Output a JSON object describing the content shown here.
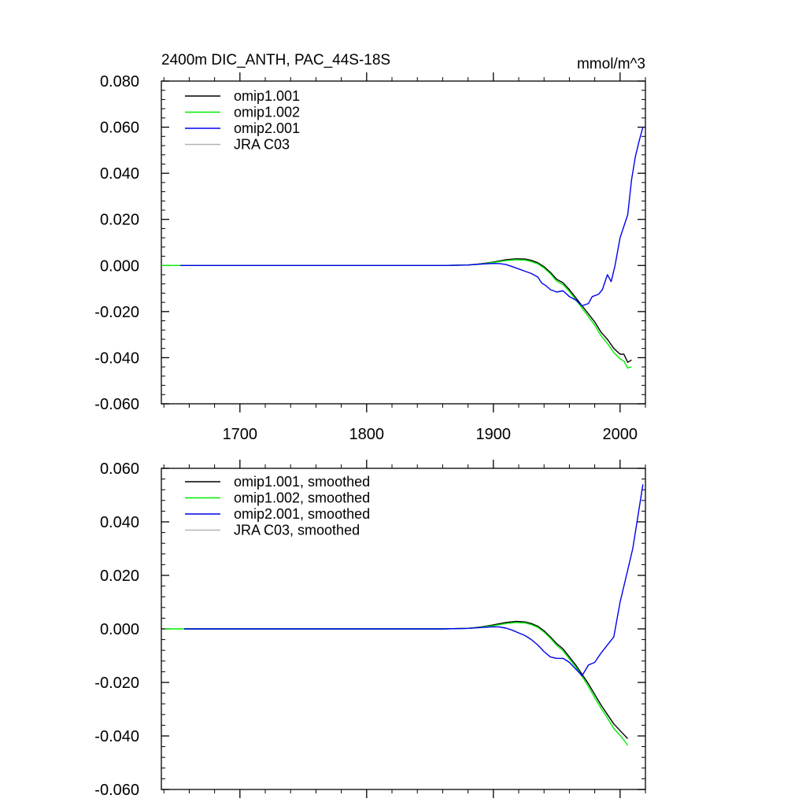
{
  "chart_data": [
    {
      "type": "line",
      "title": "2400m DIC_ANTH, PAC_44S-18S",
      "units": "mmol/m^3",
      "xlim": [
        1638,
        2020
      ],
      "ylim": [
        -0.06,
        0.08
      ],
      "xticks": [
        1700,
        1800,
        1900,
        2000
      ],
      "yticks": [
        -0.06,
        -0.04,
        -0.02,
        0.0,
        0.02,
        0.04,
        0.06,
        0.08
      ],
      "ytick_labels": [
        "-0.060",
        "-0.040",
        "-0.020",
        "0.000",
        "0.020",
        "0.040",
        "0.060",
        "0.080"
      ],
      "xtick_labels": [
        "1700",
        "1800",
        "1900",
        "2000"
      ],
      "legend_placement": "top-left",
      "series": [
        {
          "name": "omip1.001",
          "color": "#000000",
          "x": [
            1653,
            1700,
            1800,
            1860,
            1880,
            1890,
            1900,
            1910,
            1918,
            1925,
            1930,
            1935,
            1940,
            1945,
            1950,
            1955,
            1960,
            1965,
            1970,
            1975,
            1980,
            1985,
            1990,
            1995,
            2000,
            2003,
            2006,
            2009
          ],
          "y": [
            0,
            0,
            0,
            0,
            0.0002,
            0.0007,
            0.0015,
            0.0025,
            0.0029,
            0.0028,
            0.0022,
            0.0012,
            -0.0005,
            -0.003,
            -0.006,
            -0.0075,
            -0.0105,
            -0.014,
            -0.0175,
            -0.021,
            -0.0245,
            -0.029,
            -0.032,
            -0.036,
            -0.0385,
            -0.0385,
            -0.042,
            -0.041
          ]
        },
        {
          "name": "omip1.002",
          "color": "#00ee00",
          "x": [
            1638,
            1700,
            1800,
            1860,
            1880,
            1890,
            1900,
            1910,
            1918,
            1925,
            1930,
            1935,
            1940,
            1945,
            1950,
            1955,
            1960,
            1965,
            1970,
            1975,
            1980,
            1985,
            1990,
            1995,
            2000,
            2003,
            2006,
            2009
          ],
          "y": [
            0,
            0,
            0,
            0,
            0.0002,
            0.0006,
            0.0013,
            0.0021,
            0.0025,
            0.0023,
            0.0017,
            0.0007,
            -0.0011,
            -0.0036,
            -0.0068,
            -0.0083,
            -0.0113,
            -0.0148,
            -0.0185,
            -0.0222,
            -0.0259,
            -0.0305,
            -0.0338,
            -0.0378,
            -0.0405,
            -0.0415,
            -0.0445,
            -0.044
          ]
        },
        {
          "name": "omip2.001",
          "color": "#0000ee",
          "x": [
            1653,
            1700,
            1800,
            1860,
            1880,
            1890,
            1900,
            1905,
            1910,
            1915,
            1920,
            1925,
            1930,
            1935,
            1938,
            1942,
            1945,
            1950,
            1955,
            1960,
            1965,
            1970,
            1975,
            1978,
            1983,
            1986,
            1990,
            1993,
            1996,
            2000,
            2003,
            2006,
            2009,
            2012,
            2015,
            2018
          ],
          "y": [
            0,
            0,
            0,
            0,
            0.0002,
            0.0006,
            0.0009,
            0.0008,
            0.0004,
            -0.0005,
            -0.0015,
            -0.0025,
            -0.0035,
            -0.005,
            -0.0075,
            -0.009,
            -0.0105,
            -0.0115,
            -0.011,
            -0.0135,
            -0.015,
            -0.0175,
            -0.0165,
            -0.0135,
            -0.0125,
            -0.0105,
            -0.004,
            -0.007,
            0.0,
            0.012,
            0.017,
            0.022,
            0.037,
            0.047,
            0.054,
            0.06
          ]
        },
        {
          "name": "JRA C03",
          "color": "#b4b4b4",
          "x": [],
          "y": []
        }
      ]
    },
    {
      "type": "line",
      "title": "",
      "units": "",
      "xlim": [
        1638,
        2020
      ],
      "ylim": [
        -0.06,
        0.06
      ],
      "xticks": [
        1700,
        1800,
        1900,
        2000
      ],
      "yticks": [
        -0.06,
        -0.04,
        -0.02,
        0.0,
        0.02,
        0.04,
        0.06
      ],
      "ytick_labels": [
        "-0.060",
        "-0.040",
        "-0.020",
        "0.000",
        "0.020",
        "0.040",
        "0.060"
      ],
      "xtick_labels": [],
      "legend_placement": "top-left",
      "series": [
        {
          "name": "omip1.001, smoothed",
          "color": "#000000",
          "x": [
            1656,
            1700,
            1800,
            1860,
            1880,
            1890,
            1900,
            1910,
            1918,
            1925,
            1930,
            1935,
            1940,
            1945,
            1950,
            1955,
            1960,
            1965,
            1970,
            1975,
            1980,
            1985,
            1990,
            1995,
            2000,
            2003,
            2006
          ],
          "y": [
            0,
            0,
            0,
            0,
            0.0002,
            0.0007,
            0.0015,
            0.0024,
            0.0028,
            0.0026,
            0.002,
            0.001,
            -0.0007,
            -0.003,
            -0.0055,
            -0.0075,
            -0.0105,
            -0.0135,
            -0.017,
            -0.0205,
            -0.0245,
            -0.0285,
            -0.032,
            -0.0355,
            -0.038,
            -0.0395,
            -0.041
          ]
        },
        {
          "name": "omip1.002, smoothed",
          "color": "#00ee00",
          "x": [
            1641,
            1700,
            1800,
            1860,
            1880,
            1890,
            1900,
            1910,
            1918,
            1925,
            1930,
            1935,
            1940,
            1945,
            1950,
            1955,
            1960,
            1965,
            1970,
            1975,
            1980,
            1985,
            1990,
            1995,
            2000,
            2003,
            2006
          ],
          "y": [
            0,
            0,
            0,
            0,
            0.0002,
            0.0006,
            0.0012,
            0.002,
            0.0024,
            0.0022,
            0.0016,
            0.0006,
            -0.0012,
            -0.0035,
            -0.0062,
            -0.0082,
            -0.0112,
            -0.0142,
            -0.0178,
            -0.0215,
            -0.0257,
            -0.0297,
            -0.0333,
            -0.0372,
            -0.0398,
            -0.0415,
            -0.0435
          ]
        },
        {
          "name": "omip2.001, smoothed",
          "color": "#0000ee",
          "x": [
            1656,
            1700,
            1800,
            1860,
            1880,
            1890,
            1900,
            1905,
            1910,
            1915,
            1920,
            1925,
            1930,
            1935,
            1940,
            1945,
            1950,
            1955,
            1960,
            1965,
            1970,
            1975,
            1980,
            1985,
            1990,
            1995,
            2000,
            2005,
            2010,
            2015,
            2018
          ],
          "y": [
            0,
            0,
            0,
            0,
            0.0002,
            0.0005,
            0.0008,
            0.0007,
            0.0003,
            -0.0005,
            -0.0015,
            -0.0025,
            -0.004,
            -0.006,
            -0.0085,
            -0.0105,
            -0.011,
            -0.011,
            -0.0125,
            -0.015,
            -0.0175,
            -0.0135,
            -0.0125,
            -0.009,
            -0.006,
            -0.003,
            0.01,
            0.02,
            0.03,
            0.045,
            0.054
          ]
        },
        {
          "name": "JRA C03, smoothed",
          "color": "#b4b4b4",
          "x": [],
          "y": []
        }
      ]
    }
  ]
}
